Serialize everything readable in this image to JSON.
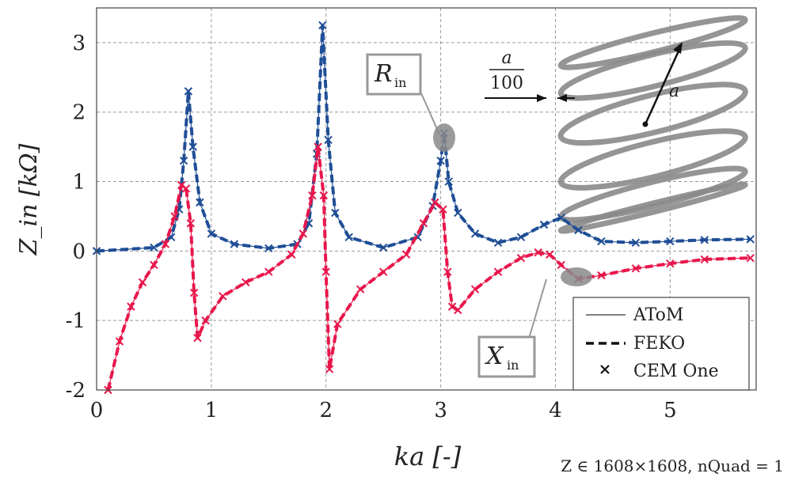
{
  "chart_data": {
    "type": "line",
    "xlabel": "ka [-]",
    "ylabel": "Z_in [kΩ]",
    "xlim": [
      0,
      5.75
    ],
    "ylim": [
      -2,
      3.5
    ],
    "x_ticks": [
      "0",
      "1",
      "2",
      "3",
      "4",
      "5"
    ],
    "y_ticks": [
      "-2",
      "-1",
      "0",
      "1",
      "2",
      "3"
    ],
    "grid": true,
    "legend_position": "lower-right",
    "legend": [
      "AToM",
      "FEKO",
      "CEM One"
    ],
    "annotations": {
      "r_label": "R",
      "r_sub": "in",
      "x_label": "X",
      "x_sub": "in",
      "inset_fraction_num": "a",
      "inset_fraction_den": "100",
      "inset_radius": "a"
    },
    "footnote": "Z ∈ 1608×1608, nQuad = 1",
    "series": [
      {
        "name": "R_in",
        "color": "#1f4e96",
        "points": [
          [
            0.0,
            0.0
          ],
          [
            0.5,
            0.05
          ],
          [
            0.65,
            0.2
          ],
          [
            0.72,
            0.6
          ],
          [
            0.76,
            1.3
          ],
          [
            0.8,
            2.3
          ],
          [
            0.84,
            1.5
          ],
          [
            0.9,
            0.7
          ],
          [
            1.0,
            0.25
          ],
          [
            1.2,
            0.1
          ],
          [
            1.5,
            0.04
          ],
          [
            1.75,
            0.1
          ],
          [
            1.85,
            0.4
          ],
          [
            1.92,
            1.4
          ],
          [
            1.97,
            3.25
          ],
          [
            2.02,
            1.6
          ],
          [
            2.08,
            0.55
          ],
          [
            2.2,
            0.2
          ],
          [
            2.5,
            0.05
          ],
          [
            2.8,
            0.2
          ],
          [
            2.93,
            0.65
          ],
          [
            3.0,
            1.3
          ],
          [
            3.03,
            1.7
          ],
          [
            3.07,
            1.0
          ],
          [
            3.15,
            0.55
          ],
          [
            3.3,
            0.25
          ],
          [
            3.5,
            0.12
          ],
          [
            3.7,
            0.2
          ],
          [
            3.9,
            0.38
          ],
          [
            4.05,
            0.48
          ],
          [
            4.2,
            0.3
          ],
          [
            4.4,
            0.14
          ],
          [
            4.7,
            0.12
          ],
          [
            5.0,
            0.14
          ],
          [
            5.3,
            0.16
          ],
          [
            5.7,
            0.17
          ]
        ]
      },
      {
        "name": "X_in",
        "color": "#e8174b",
        "points": [
          [
            0.1,
            -2.0
          ],
          [
            0.2,
            -1.3
          ],
          [
            0.3,
            -0.8
          ],
          [
            0.4,
            -0.45
          ],
          [
            0.5,
            -0.2
          ],
          [
            0.6,
            0.1
          ],
          [
            0.68,
            0.5
          ],
          [
            0.74,
            0.95
          ],
          [
            0.78,
            0.9
          ],
          [
            0.82,
            0.4
          ],
          [
            0.85,
            -0.6
          ],
          [
            0.88,
            -1.25
          ],
          [
            0.95,
            -1.0
          ],
          [
            1.1,
            -0.65
          ],
          [
            1.3,
            -0.45
          ],
          [
            1.5,
            -0.3
          ],
          [
            1.7,
            -0.05
          ],
          [
            1.8,
            0.25
          ],
          [
            1.88,
            0.8
          ],
          [
            1.93,
            1.5
          ],
          [
            1.98,
            0.8
          ],
          [
            2.0,
            -0.3
          ],
          [
            2.03,
            -1.7
          ],
          [
            2.1,
            -1.05
          ],
          [
            2.3,
            -0.55
          ],
          [
            2.5,
            -0.3
          ],
          [
            2.7,
            -0.05
          ],
          [
            2.85,
            0.4
          ],
          [
            2.95,
            0.7
          ],
          [
            3.02,
            0.6
          ],
          [
            3.06,
            -0.3
          ],
          [
            3.1,
            -0.8
          ],
          [
            3.15,
            -0.85
          ],
          [
            3.3,
            -0.55
          ],
          [
            3.5,
            -0.3
          ],
          [
            3.7,
            -0.1
          ],
          [
            3.85,
            -0.02
          ],
          [
            3.95,
            -0.05
          ],
          [
            4.05,
            -0.2
          ],
          [
            4.2,
            -0.4
          ],
          [
            4.4,
            -0.35
          ],
          [
            4.7,
            -0.25
          ],
          [
            5.0,
            -0.18
          ],
          [
            5.3,
            -0.12
          ],
          [
            5.7,
            -0.1
          ]
        ]
      }
    ]
  }
}
